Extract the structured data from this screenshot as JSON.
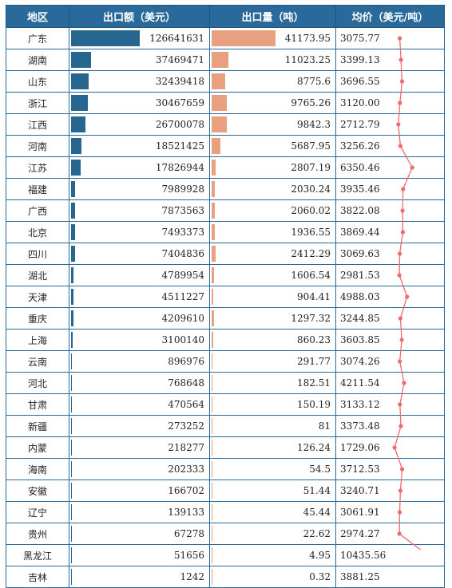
{
  "headers": {
    "region": "地区",
    "amount": "出口额（美元）",
    "volume": "出口量（吨）",
    "price": "均价（美元/吨）"
  },
  "colors": {
    "header_bg": "#2a6a9a",
    "amount_bar": "#27678f",
    "volume_bar": "#e8a080",
    "spark": "#f06b6b"
  },
  "chart_data": {
    "type": "table",
    "columns": [
      "地区",
      "出口额（美元）",
      "出口量（吨）",
      "均价（美元/吨）"
    ],
    "rows": [
      {
        "region": "广东",
        "amount": "126641631",
        "volume": "41173.95",
        "price": "3075.77"
      },
      {
        "region": "湖南",
        "amount": "37469471",
        "volume": "11023.25",
        "price": "3399.13"
      },
      {
        "region": "山东",
        "amount": "32439418",
        "volume": "8775.6",
        "price": "3696.55"
      },
      {
        "region": "浙江",
        "amount": "30467659",
        "volume": "9765.26",
        "price": "3120.00"
      },
      {
        "region": "江西",
        "amount": "26700078",
        "volume": "9842.3",
        "price": "2712.79"
      },
      {
        "region": "河南",
        "amount": "18521425",
        "volume": "5687.95",
        "price": "3256.26"
      },
      {
        "region": "江苏",
        "amount": "17826944",
        "volume": "2807.19",
        "price": "6350.46"
      },
      {
        "region": "福建",
        "amount": "7989928",
        "volume": "2030.24",
        "price": "3935.46"
      },
      {
        "region": "广西",
        "amount": "7873563",
        "volume": "2060.02",
        "price": "3822.08"
      },
      {
        "region": "北京",
        "amount": "7493373",
        "volume": "1936.55",
        "price": "3869.44"
      },
      {
        "region": "四川",
        "amount": "7404836",
        "volume": "2412.29",
        "price": "3069.63"
      },
      {
        "region": "湖北",
        "amount": "4789954",
        "volume": "1606.54",
        "price": "2981.53"
      },
      {
        "region": "天津",
        "amount": "4511227",
        "volume": "904.41",
        "price": "4988.03"
      },
      {
        "region": "重庆",
        "amount": "4209610",
        "volume": "1297.32",
        "price": "3244.85"
      },
      {
        "region": "上海",
        "amount": "3100140",
        "volume": "860.23",
        "price": "3603.85"
      },
      {
        "region": "云南",
        "amount": "896976",
        "volume": "291.77",
        "price": "3074.26"
      },
      {
        "region": "河北",
        "amount": "768648",
        "volume": "182.51",
        "price": "4211.54"
      },
      {
        "region": "甘肃",
        "amount": "470564",
        "volume": "150.19",
        "price": "3133.12"
      },
      {
        "region": "新疆",
        "amount": "273252",
        "volume": "81",
        "price": "3373.48"
      },
      {
        "region": "内蒙",
        "amount": "218277",
        "volume": "126.24",
        "price": "1729.06"
      },
      {
        "region": "海南",
        "amount": "202333",
        "volume": "54.5",
        "price": "3712.53"
      },
      {
        "region": "安徽",
        "amount": "166702",
        "volume": "51.44",
        "price": "3240.71"
      },
      {
        "region": "辽宁",
        "amount": "139133",
        "volume": "45.44",
        "price": "3061.91"
      },
      {
        "region": "贵州",
        "amount": "67278",
        "volume": "22.62",
        "price": "2974.27"
      },
      {
        "region": "黑龙江",
        "amount": "51656",
        "volume": "4.95",
        "price": "10435.56"
      },
      {
        "region": "吉林",
        "amount": "1242",
        "volume": "0.32",
        "price": "3881.25"
      }
    ]
  }
}
